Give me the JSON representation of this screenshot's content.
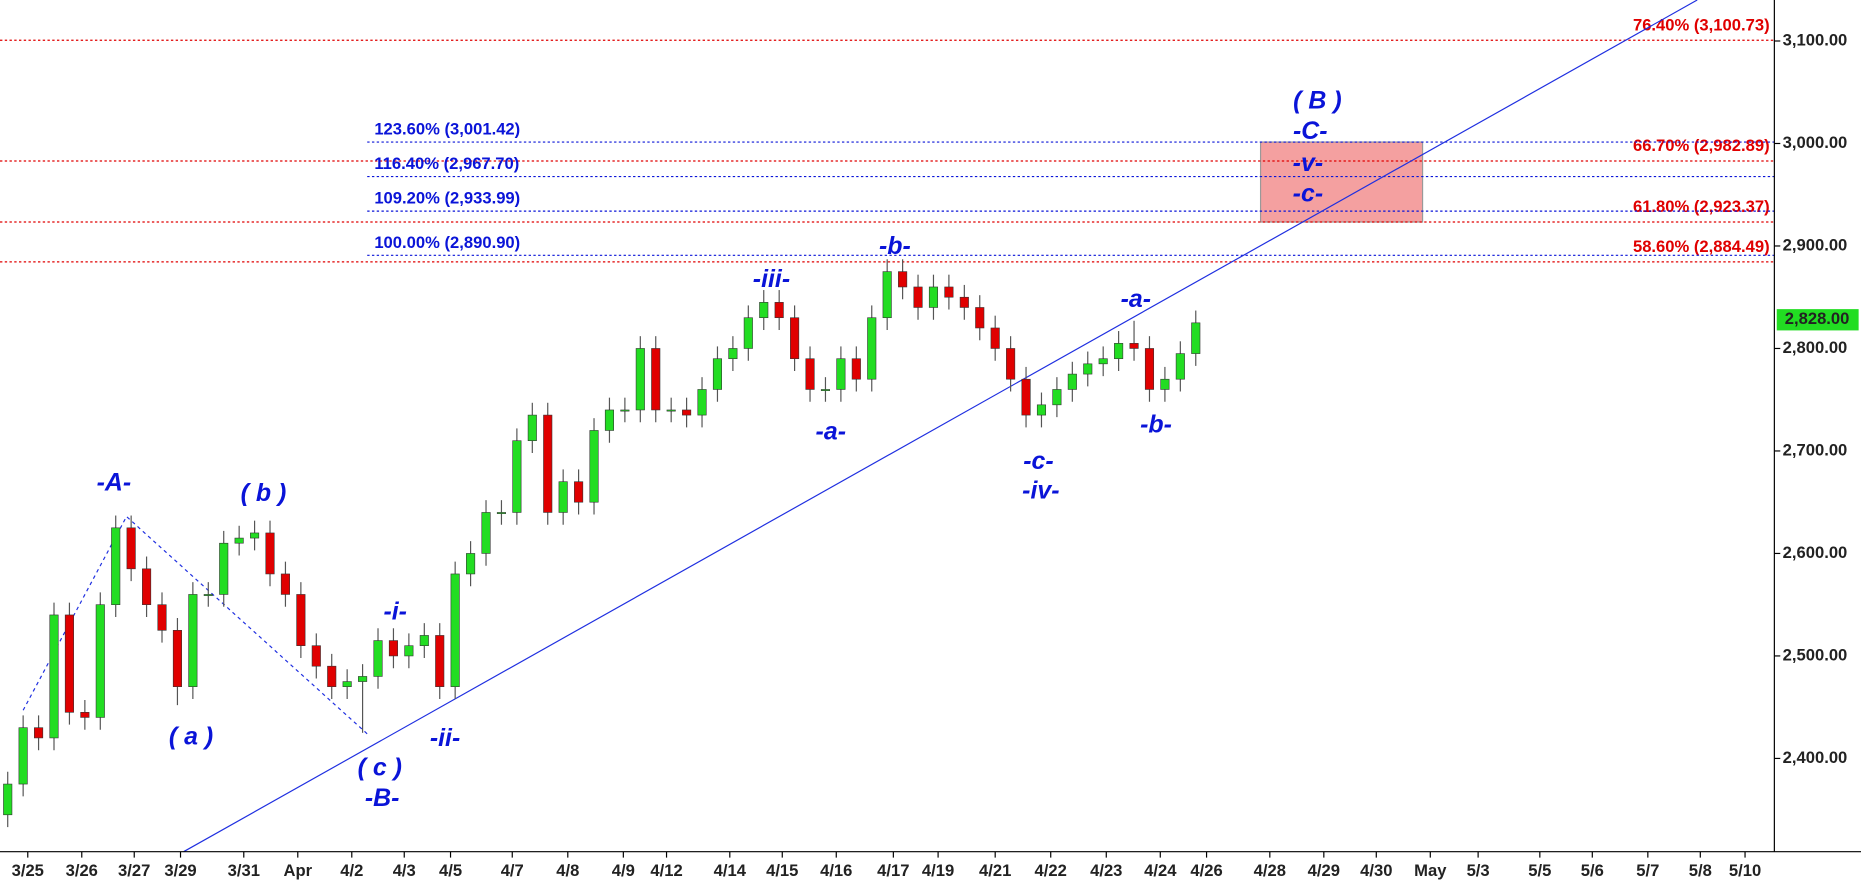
{
  "chart_data": {
    "type": "candlestick",
    "xlim": [
      -0.5,
      114.5
    ],
    "ylim": [
      2309,
      3140
    ],
    "open": [
      2345,
      2375,
      2430,
      2420,
      2540,
      2445,
      2440,
      2550,
      2625,
      2585,
      2550,
      2525,
      2470,
      2560,
      2560,
      2610,
      2615,
      2620,
      2580,
      2560,
      2510,
      2490,
      2470,
      2475,
      2480,
      2515,
      2500,
      2510,
      2520,
      2470,
      2580,
      2600,
      2640,
      2640,
      2710,
      2735,
      2640,
      2670,
      2650,
      2720,
      2740,
      2740,
      2800,
      2740,
      2740,
      2735,
      2760,
      2790,
      2800,
      2830,
      2845,
      2830,
      2790,
      2760,
      2760,
      2790,
      2770,
      2830,
      2875,
      2860,
      2840,
      2860,
      2850,
      2840,
      2820,
      2800,
      2770,
      2735,
      2745,
      2760,
      2775,
      2785,
      2790,
      2805,
      2800,
      2760,
      2770,
      2795
    ],
    "high": [
      2387,
      2442,
      2442,
      2552,
      2552,
      2457,
      2562,
      2637,
      2637,
      2597,
      2562,
      2537,
      2572,
      2572,
      2622,
      2627,
      2632,
      2632,
      2592,
      2572,
      2522,
      2502,
      2487,
      2492,
      2527,
      2527,
      2522,
      2532,
      2532,
      2592,
      2612,
      2652,
      2652,
      2722,
      2747,
      2747,
      2682,
      2682,
      2732,
      2752,
      2752,
      2812,
      2812,
      2752,
      2752,
      2772,
      2802,
      2812,
      2842,
      2857,
      2857,
      2842,
      2802,
      2772,
      2802,
      2802,
      2842,
      2887,
      2887,
      2872,
      2872,
      2872,
      2862,
      2852,
      2832,
      2812,
      2782,
      2757,
      2772,
      2787,
      2797,
      2802,
      2817,
      2827,
      2812,
      2782,
      2807,
      2837
    ],
    "low": [
      2333,
      2363,
      2408,
      2408,
      2433,
      2428,
      2428,
      2538,
      2573,
      2538,
      2513,
      2452,
      2458,
      2548,
      2548,
      2598,
      2603,
      2568,
      2548,
      2498,
      2478,
      2458,
      2458,
      2425,
      2468,
      2488,
      2488,
      2498,
      2458,
      2458,
      2568,
      2588,
      2628,
      2628,
      2698,
      2628,
      2628,
      2638,
      2638,
      2708,
      2728,
      2728,
      2728,
      2728,
      2723,
      2723,
      2748,
      2778,
      2788,
      2818,
      2818,
      2778,
      2748,
      2748,
      2748,
      2758,
      2758,
      2818,
      2848,
      2828,
      2828,
      2838,
      2828,
      2808,
      2788,
      2758,
      2723,
      2723,
      2733,
      2748,
      2763,
      2773,
      2778,
      2788,
      2748,
      2748,
      2758,
      2783
    ],
    "close": [
      2375,
      2430,
      2420,
      2540,
      2445,
      2440,
      2550,
      2625,
      2585,
      2550,
      2525,
      2470,
      2560,
      2560,
      2610,
      2615,
      2620,
      2580,
      2560,
      2510,
      2490,
      2470,
      2475,
      2480,
      2515,
      2500,
      2510,
      2520,
      2470,
      2580,
      2600,
      2640,
      2640,
      2710,
      2735,
      2640,
      2670,
      2650,
      2720,
      2740,
      2740,
      2800,
      2740,
      2740,
      2735,
      2760,
      2790,
      2800,
      2830,
      2845,
      2830,
      2790,
      2760,
      2760,
      2790,
      2770,
      2830,
      2875,
      2860,
      2840,
      2860,
      2850,
      2840,
      2820,
      2800,
      2770,
      2735,
      2745,
      2760,
      2775,
      2785,
      2790,
      2805,
      2800,
      2760,
      2770,
      2795,
      2825
    ],
    "up_color": "#22dd22",
    "down_color": "#e00000",
    "yticks": [
      {
        "value": 2400,
        "label": "2,400.00"
      },
      {
        "value": 2500,
        "label": "2,500.00"
      },
      {
        "value": 2600,
        "label": "2,600.00"
      },
      {
        "value": 2700,
        "label": "2,700.00"
      },
      {
        "value": 2800,
        "label": "2,800.00"
      },
      {
        "value": 2900,
        "label": "2,900.00"
      },
      {
        "value": 3000,
        "label": "3,000.00"
      },
      {
        "value": 3100,
        "label": "3,100.00"
      }
    ],
    "xticks": [
      {
        "value": 1.3,
        "label": "3/25"
      },
      {
        "value": 4.8,
        "label": "3/26"
      },
      {
        "value": 8.2,
        "label": "3/27"
      },
      {
        "value": 11.2,
        "label": "3/29"
      },
      {
        "value": 15.3,
        "label": "3/31"
      },
      {
        "value": 18.8,
        "label": "Apr"
      },
      {
        "value": 22.3,
        "label": "4/2"
      },
      {
        "value": 25.7,
        "label": "4/3"
      },
      {
        "value": 28.7,
        "label": "4/5"
      },
      {
        "value": 32.7,
        "label": "4/7"
      },
      {
        "value": 36.3,
        "label": "4/8"
      },
      {
        "value": 39.9,
        "label": "4/9"
      },
      {
        "value": 42.7,
        "label": "4/12"
      },
      {
        "value": 46.8,
        "label": "4/14"
      },
      {
        "value": 50.2,
        "label": "4/15"
      },
      {
        "value": 53.7,
        "label": "4/16"
      },
      {
        "value": 57.4,
        "label": "4/17"
      },
      {
        "value": 60.3,
        "label": "4/19"
      },
      {
        "value": 64.0,
        "label": "4/21"
      },
      {
        "value": 67.6,
        "label": "4/22"
      },
      {
        "value": 71.2,
        "label": "4/23"
      },
      {
        "value": 74.7,
        "label": "4/24"
      },
      {
        "value": 77.7,
        "label": "4/26"
      },
      {
        "value": 81.8,
        "label": "4/28"
      },
      {
        "value": 85.3,
        "label": "4/29"
      },
      {
        "value": 88.7,
        "label": "4/30"
      },
      {
        "value": 92.2,
        "label": "May"
      },
      {
        "value": 95.3,
        "label": "5/3"
      },
      {
        "value": 99.3,
        "label": "5/5"
      },
      {
        "value": 102.7,
        "label": "5/6"
      },
      {
        "value": 106.3,
        "label": "5/7"
      },
      {
        "value": 109.7,
        "label": "5/8"
      },
      {
        "value": 112.6,
        "label": "5/10"
      }
    ],
    "last_price": {
      "value": 2828,
      "label": "2,828.00",
      "color": "#22dd22"
    },
    "retracement_levels": {
      "color": "#e00000",
      "levels": [
        {
          "value": 3100.73,
          "label": "76.40% (3,100.73)"
        },
        {
          "value": 2982.89,
          "label": "66.70% (2,982.89)"
        },
        {
          "value": 2923.37,
          "label": "61.80% (2,923.37)"
        },
        {
          "value": 2884.49,
          "label": "58.60% (2,884.49)"
        }
      ]
    },
    "extension_levels": {
      "color": "#0a14d8",
      "levels": [
        {
          "value": 3001.42,
          "label": "123.60% (3,001.42)"
        },
        {
          "value": 2967.7,
          "label": "116.40% (2,967.70)"
        },
        {
          "value": 2933.99,
          "label": "109.20% (2,933.99)"
        },
        {
          "value": 2890.9,
          "label": "100.00% (2,890.90)"
        }
      ]
    },
    "target_zone": {
      "x": [
        81.2,
        91.7
      ],
      "y": [
        2923.37,
        3001.42
      ],
      "color": "#f4a0a0"
    },
    "trendline": {
      "x": [
        11.4,
        109.5
      ],
      "y": [
        2309,
        3140
      ],
      "color": "#1f2fe0"
    },
    "wave_path": {
      "x": [
        1.0,
        7.7,
        23.3
      ],
      "y": [
        2447,
        2636,
        2424
      ]
    },
    "wave_labels": [
      "-A-",
      "( a )",
      "( b )",
      "( c )",
      "-B-",
      "-i-",
      "-ii-",
      "-iii-",
      "-a-",
      "-b-",
      "-c-",
      "-iv-",
      "-a-",
      "-b-",
      "( B )",
      "-C-",
      "-v-",
      "-c-"
    ]
  }
}
